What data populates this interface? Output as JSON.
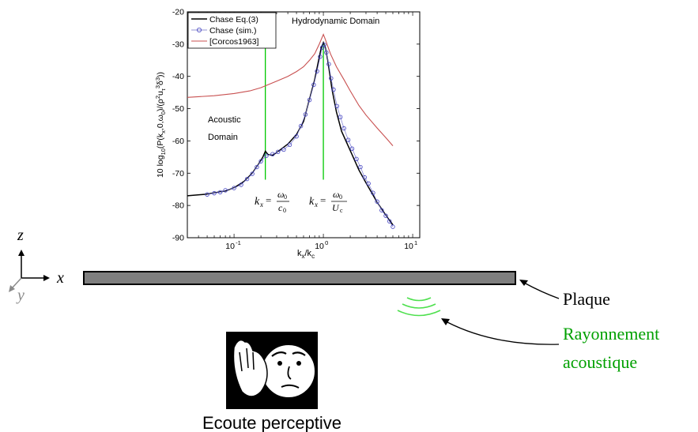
{
  "chart_data": {
    "type": "line",
    "xlabel": "k_x/k_c",
    "ylabel": "10 log10(P(kx,0,ω0)/(ρ²uτ³δ³))",
    "xscale": "log",
    "xlim": [
      0.03,
      12
    ],
    "ylim": [
      -90,
      -20
    ],
    "yticks": [
      -90,
      -80,
      -70,
      -60,
      -50,
      -40,
      -30,
      -20
    ],
    "xticks": [
      {
        "value": 0.1,
        "base": "10",
        "exp": "-1"
      },
      {
        "value": 1,
        "base": "10",
        "exp": "0"
      },
      {
        "value": 10,
        "base": "10",
        "exp": "1"
      }
    ],
    "series": [
      {
        "name": "Chase Eq.(3)",
        "color": "#000000",
        "x": [
          0.03,
          0.05,
          0.08,
          0.1,
          0.13,
          0.16,
          0.19,
          0.21,
          0.224,
          0.24,
          0.27,
          0.32,
          0.4,
          0.5,
          0.6,
          0.7,
          0.8,
          0.9,
          0.95,
          1.0,
          1.05,
          1.12,
          1.25,
          1.4,
          1.6,
          2.0,
          2.5,
          3.0,
          4.0,
          5.0,
          6.0
        ],
        "y": [
          -77,
          -76.5,
          -75.5,
          -74.5,
          -72.5,
          -70,
          -67,
          -65,
          -63.2,
          -64.2,
          -64.5,
          -63,
          -61,
          -58,
          -54,
          -47,
          -41,
          -34,
          -31,
          -29.5,
          -31,
          -35,
          -44,
          -51,
          -57,
          -63,
          -69,
          -73,
          -79,
          -83,
          -86
        ]
      },
      {
        "name": "Chase (sim.)",
        "color": "#4040c0",
        "marker": "circle",
        "x": [
          0.05,
          0.06,
          0.07,
          0.08,
          0.1,
          0.12,
          0.14,
          0.16,
          0.18,
          0.2,
          0.23,
          0.27,
          0.31,
          0.36,
          0.42,
          0.5,
          0.56,
          0.63,
          0.7,
          0.78,
          0.85,
          0.92,
          0.97,
          1.02,
          1.08,
          1.15,
          1.22,
          1.3,
          1.42,
          1.55,
          1.7,
          1.9,
          2.1,
          2.35,
          2.6,
          2.9,
          3.2,
          3.6,
          4.0,
          4.5,
          5.0,
          5.5,
          6.0
        ],
        "y": [
          -76.6,
          -76.2,
          -75.9,
          -75.3,
          -74.6,
          -73.6,
          -71.8,
          -70.2,
          -68.1,
          -66.3,
          -64.6,
          -64.1,
          -63.4,
          -62.7,
          -61.2,
          -58.6,
          -55.4,
          -51.8,
          -47.3,
          -42.6,
          -38.4,
          -33.9,
          -31.1,
          -30.2,
          -32.6,
          -36.2,
          -40.6,
          -44.1,
          -49.2,
          -52.6,
          -56.1,
          -59.7,
          -62.4,
          -65.6,
          -68.1,
          -71.3,
          -73.2,
          -76.1,
          -78.8,
          -81.5,
          -83.2,
          -84.9,
          -86.6
        ]
      },
      {
        "name": "[Corcos1963]",
        "color": "#c85050",
        "x": [
          0.03,
          0.06,
          0.1,
          0.15,
          0.2,
          0.3,
          0.4,
          0.5,
          0.6,
          0.7,
          0.8,
          0.9,
          0.95,
          1.0,
          1.05,
          1.1,
          1.2,
          1.4,
          1.7,
          2.0,
          2.5,
          3.0,
          4.0,
          5.0,
          6.0
        ],
        "y": [
          -46.5,
          -46,
          -45.3,
          -44.5,
          -43.5,
          -41.5,
          -40,
          -38.5,
          -37,
          -35,
          -33,
          -30,
          -28.5,
          -27,
          -28.5,
          -30,
          -33,
          -37,
          -41,
          -44.5,
          -49,
          -52,
          -56,
          -59,
          -61.5
        ]
      }
    ],
    "vlines": [
      {
        "x": 0.224,
        "color": "#00c800",
        "y_from": -72,
        "y_to": -30
      },
      {
        "x": 1.0,
        "color": "#00c800",
        "y_from": -72,
        "y_to": -30
      }
    ],
    "annotations": {
      "hydro": "Hydrodynamic Domain",
      "acoustic_line1": "Acoustic",
      "acoustic_line2": "Domain",
      "eq1_lhs": "k",
      "eq1_sub": "x",
      "eq1_num_base": "ω",
      "eq1_num_sub": "0",
      "eq1_den_base": "c",
      "eq1_den_sub": "0",
      "eq2_lhs": "k",
      "eq2_sub": "x",
      "eq2_num_base": "ω",
      "eq2_num_sub": "0",
      "eq2_den_base": "U",
      "eq2_den_sub": "c"
    },
    "legend_position": "top-left",
    "grid": false
  },
  "diagram": {
    "axis_z": "z",
    "axis_x": "x",
    "axis_y": "y",
    "plate_label": "Plaque",
    "radiation_line1": "Rayonnement",
    "radiation_line2": "acoustique",
    "listening_label": "Ecoute perceptive",
    "colors": {
      "plate_fill": "#7f7f7f",
      "radiation_green": "#00a000",
      "wave_green": "#4ee04e"
    }
  }
}
